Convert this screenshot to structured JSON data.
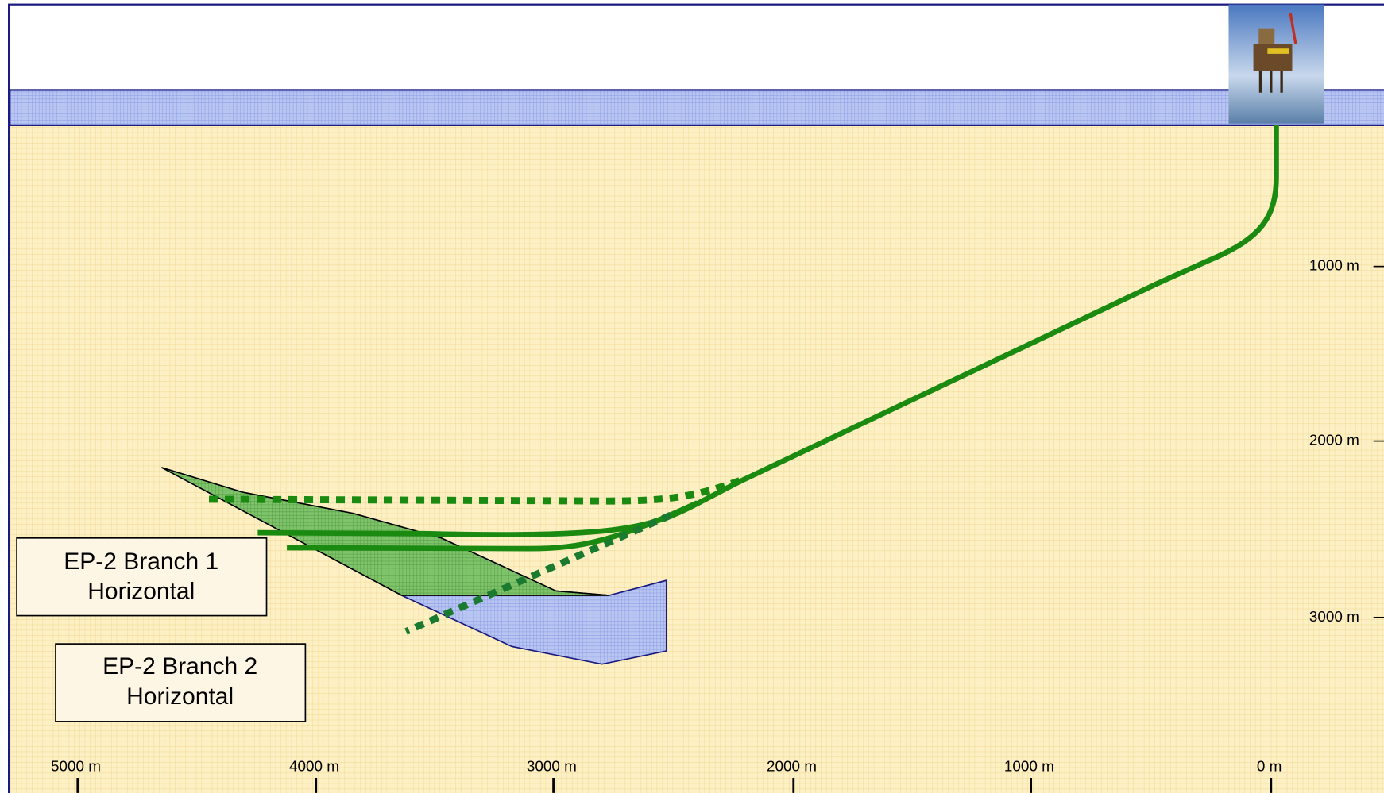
{
  "depth_axis": {
    "labels": [
      "1000 m",
      "2000 m",
      "3000 m"
    ]
  },
  "offset_axis": {
    "labels": [
      "5000 m",
      "4000 m",
      "3000 m",
      "2000 m",
      "1000 m",
      "0 m"
    ]
  },
  "callouts": [
    {
      "lines": [
        "EP-2 Branch 1",
        "Horizontal"
      ]
    },
    {
      "lines": [
        "EP-2 Branch 2",
        "Horizontal"
      ]
    }
  ]
}
